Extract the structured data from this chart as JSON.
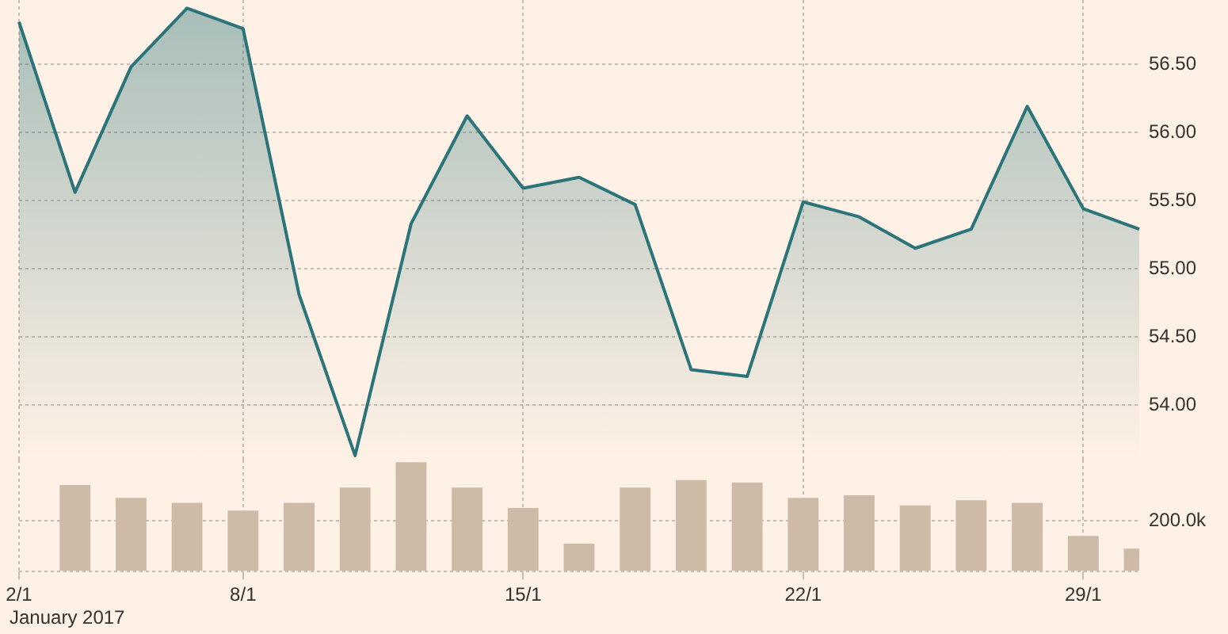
{
  "chart_data": [
    {
      "type": "area",
      "categories": [
        null,
        null,
        null,
        null,
        null,
        null,
        null,
        null,
        null,
        null,
        null,
        null,
        null,
        null,
        null,
        null,
        null,
        null,
        null,
        null,
        null
      ],
      "series": [
        {
          "color": "#2b7479",
          "values": [
            56.81,
            55.56,
            56.48,
            56.91,
            56.76,
            54.81,
            53.63,
            55.33,
            56.12,
            55.59,
            55.67,
            55.47,
            54.26,
            54.21,
            55.49,
            55.38,
            55.15,
            55.29,
            56.19,
            55.44,
            55.29
          ]
        }
      ],
      "ylim": [
        53.6,
        56.97
      ],
      "yticks": [
        {
          "value": 54,
          "label": "54.00"
        },
        {
          "value": 54.5,
          "label": "54.50"
        },
        {
          "value": 55,
          "label": "55.00"
        },
        {
          "value": 55.5,
          "label": "55.50"
        },
        {
          "value": 56,
          "label": "56.00"
        },
        {
          "value": 56.5,
          "label": "56.50"
        }
      ],
      "grid": true,
      "tick_labels": "y"
    },
    {
      "type": "bar",
      "categories": [
        "2/1",
        null,
        null,
        null,
        "8/1",
        null,
        null,
        null,
        null,
        "15/1",
        null,
        null,
        null,
        null,
        "22/1",
        null,
        null,
        null,
        null,
        "29/1",
        null
      ],
      "series": [
        {
          "color": "#cdbba8",
          "values": [
            null,
            340000,
            290000,
            270000,
            240000,
            270000,
            330000,
            430000,
            330000,
            250000,
            110000,
            330000,
            360000,
            350000,
            290000,
            300000,
            260000,
            280000,
            270000,
            140000,
            90000
          ]
        }
      ],
      "ylim": [
        0,
        440000
      ],
      "yticks": [
        {
          "value": 0,
          "label": null
        },
        {
          "value": 200000,
          "label": "200.0k"
        }
      ],
      "grid": true,
      "annotations": [
        "January 2017"
      ]
    }
  ]
}
